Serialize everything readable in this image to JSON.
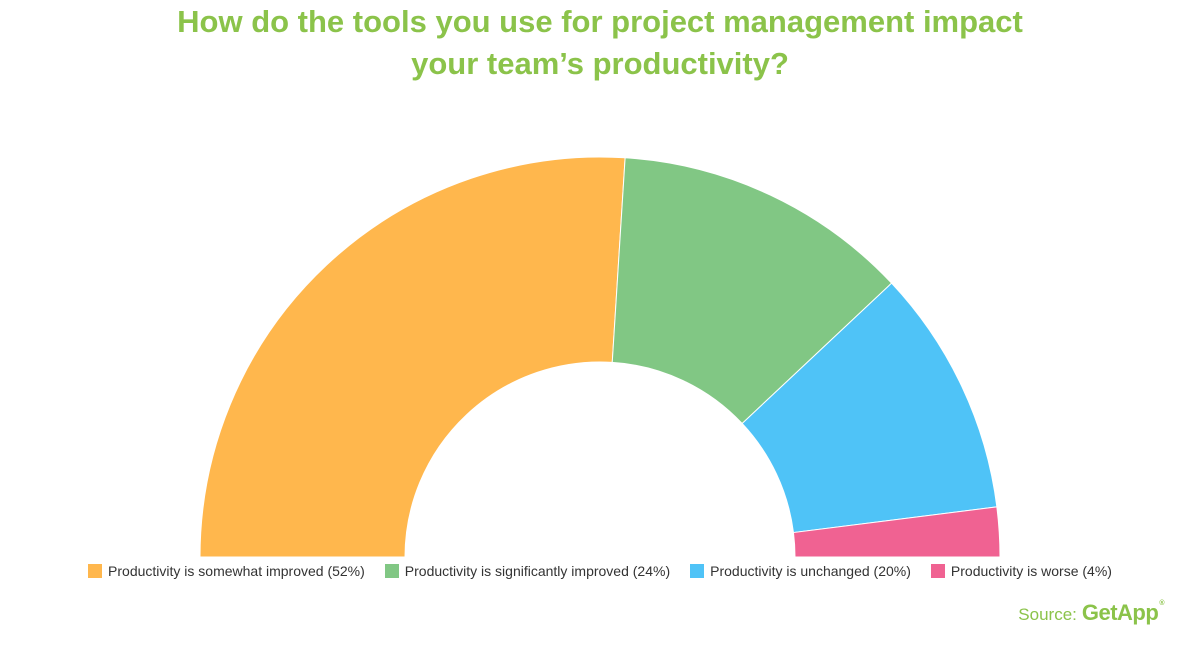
{
  "title": {
    "line1": "How do the tools you use for project management impact",
    "line2": "your team’s productivity?"
  },
  "chart_data": {
    "type": "pie",
    "subtype": "semi-donut",
    "title": "How do the tools you use for project management impact your team’s productivity?",
    "slices": [
      {
        "label": "Productivity is somewhat improved (52%)",
        "value": 52,
        "color": "#ffb74d"
      },
      {
        "label": "Productivity is significantly improved (24%)",
        "value": 24,
        "color": "#81c784"
      },
      {
        "label": "Productivity is unchanged (20%)",
        "value": 20,
        "color": "#4fc3f7"
      },
      {
        "label": "Productivity is worse (4%)",
        "value": 4,
        "color": "#f06292"
      }
    ],
    "legend_position": "bottom"
  },
  "source": {
    "label": "Source:",
    "brand": "GetApp",
    "mark": "®"
  }
}
